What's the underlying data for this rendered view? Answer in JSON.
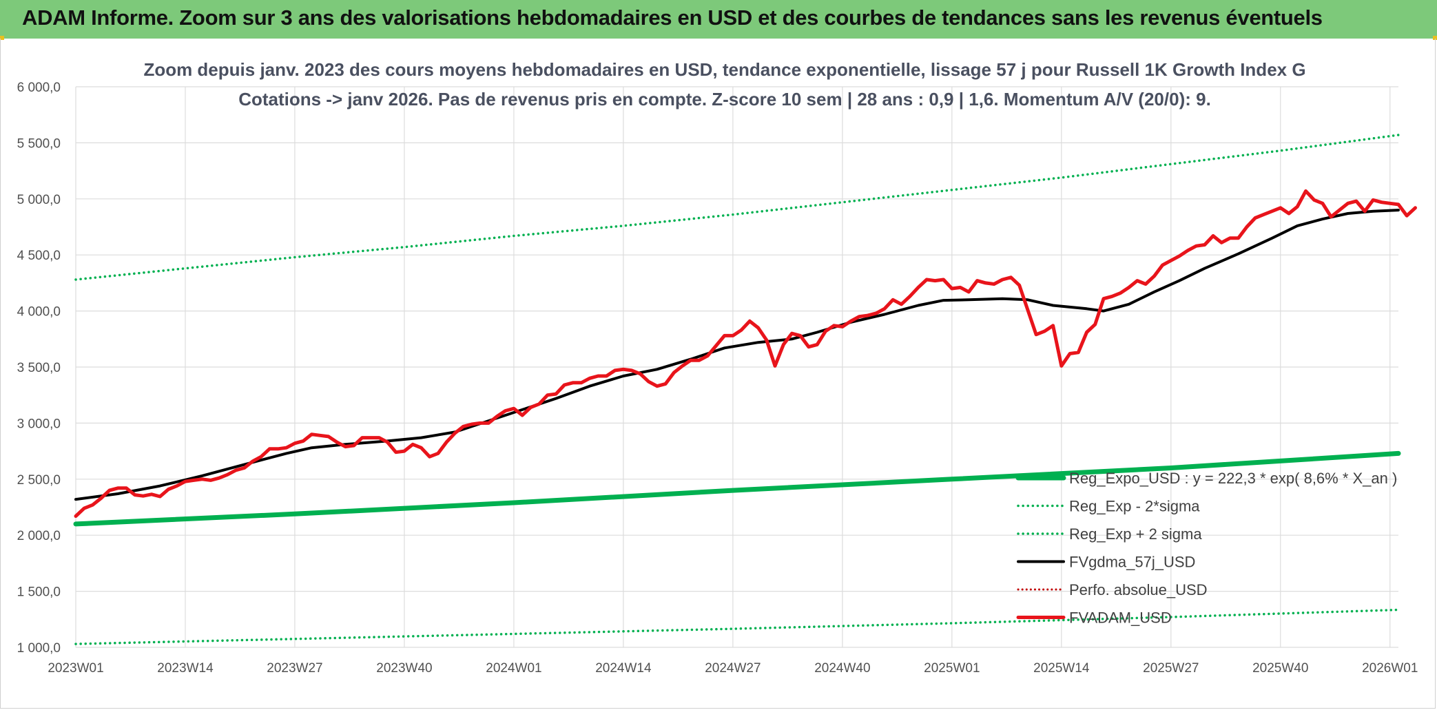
{
  "banner": {
    "title": "ADAM Informe. Zoom sur 3 ans des valorisations hebdomadaires en USD et des courbes de tendances sans les revenus éventuels"
  },
  "colors": {
    "banner": "#7dc97a",
    "trend": "#00b050",
    "smooth": "#000000",
    "price": "#e8141b",
    "perfo": "#c00000"
  },
  "chart_data": {
    "type": "line",
    "title_lines": [
      "Zoom depuis janv. 2023 des cours moyens hebdomadaires en USD, tendance exponentielle, lissage 57 j pour Russell 1K Growth Index G",
      "Cotations -> janv 2026. Pas de revenus pris en compte. Z-score 10 sem | 28 ans : 0,9 | 1,6. Momentum A/V (20/0): 9."
    ],
    "ylim": [
      1000,
      6000
    ],
    "yticks": [
      "1 000,0",
      "1 500,0",
      "2 000,0",
      "2 500,0",
      "3 000,0",
      "3 500,0",
      "4 000,0",
      "4 500,0",
      "5 000,0",
      "5 500,0",
      "6 000,0"
    ],
    "xlim": [
      1,
      158
    ],
    "xticks": [
      {
        "label": "2023W01",
        "x": 1
      },
      {
        "label": "2023W14",
        "x": 14
      },
      {
        "label": "2023W27",
        "x": 27
      },
      {
        "label": "2023W40",
        "x": 40
      },
      {
        "label": "2024W01",
        "x": 53
      },
      {
        "label": "2024W14",
        "x": 66
      },
      {
        "label": "2024W27",
        "x": 79
      },
      {
        "label": "2024W40",
        "x": 92
      },
      {
        "label": "2025W01",
        "x": 105
      },
      {
        "label": "2025W14",
        "x": 118
      },
      {
        "label": "2025W27",
        "x": 131
      },
      {
        "label": "2025W40",
        "x": 144
      },
      {
        "label": "2026W01",
        "x": 157
      }
    ],
    "grid": true,
    "legend_position": "bottom-right",
    "series": [
      {
        "name": "Reg_Expo_USD : y = 222,3 * exp( 8,6% *  X_an )",
        "style": "thick-solid",
        "points": [
          [
            1,
            2100
          ],
          [
            27,
            2190
          ],
          [
            53,
            2290
          ],
          [
            79,
            2400
          ],
          [
            105,
            2500
          ],
          [
            131,
            2600
          ],
          [
            158,
            2730
          ]
        ]
      },
      {
        "name": "Reg_Exp - 2*sigma",
        "style": "dotted-green",
        "points": [
          [
            1,
            1030
          ],
          [
            27,
            1075
          ],
          [
            53,
            1120
          ],
          [
            79,
            1165
          ],
          [
            105,
            1215
          ],
          [
            131,
            1270
          ],
          [
            158,
            1335
          ]
        ]
      },
      {
        "name": "Reg_Exp + 2 sigma",
        "style": "dotted-green",
        "points": [
          [
            1,
            4280
          ],
          [
            14,
            4380
          ],
          [
            27,
            4480
          ],
          [
            40,
            4570
          ],
          [
            53,
            4670
          ],
          [
            66,
            4760
          ],
          [
            79,
            4860
          ],
          [
            92,
            4970
          ],
          [
            105,
            5080
          ],
          [
            118,
            5190
          ],
          [
            131,
            5310
          ],
          [
            144,
            5430
          ],
          [
            158,
            5570
          ]
        ]
      },
      {
        "name": "FVgdma_57j_USD",
        "style": "solid-black",
        "points": [
          [
            1,
            2320
          ],
          [
            6,
            2370
          ],
          [
            11,
            2440
          ],
          [
            16,
            2530
          ],
          [
            21,
            2630
          ],
          [
            26,
            2730
          ],
          [
            29,
            2780
          ],
          [
            33,
            2810
          ],
          [
            38,
            2840
          ],
          [
            42,
            2870
          ],
          [
            46,
            2920
          ],
          [
            50,
            3020
          ],
          [
            54,
            3120
          ],
          [
            58,
            3220
          ],
          [
            62,
            3330
          ],
          [
            66,
            3420
          ],
          [
            70,
            3480
          ],
          [
            74,
            3570
          ],
          [
            78,
            3670
          ],
          [
            82,
            3720
          ],
          [
            86,
            3750
          ],
          [
            89,
            3810
          ],
          [
            93,
            3900
          ],
          [
            97,
            3970
          ],
          [
            101,
            4050
          ],
          [
            104,
            4095
          ],
          [
            107,
            4100
          ],
          [
            111,
            4110
          ],
          [
            114,
            4100
          ],
          [
            117,
            4050
          ],
          [
            121,
            4020
          ],
          [
            123,
            4000
          ],
          [
            126,
            4060
          ],
          [
            129,
            4170
          ],
          [
            132,
            4270
          ],
          [
            135,
            4380
          ],
          [
            139,
            4510
          ],
          [
            143,
            4650
          ],
          [
            146,
            4760
          ],
          [
            149,
            4820
          ],
          [
            152,
            4870
          ],
          [
            155,
            4890
          ],
          [
            158,
            4900
          ]
        ]
      },
      {
        "name": "Perfo. absolue_USD",
        "style": "dotted-red",
        "points": []
      },
      {
        "name": "FVADAM_USD",
        "style": "thick-red",
        "points": [
          [
            1,
            2170
          ],
          [
            2,
            2240
          ],
          [
            3,
            2270
          ],
          [
            4,
            2330
          ],
          [
            5,
            2400
          ],
          [
            6,
            2420
          ],
          [
            7,
            2420
          ],
          [
            8,
            2360
          ],
          [
            9,
            2350
          ],
          [
            10,
            2365
          ],
          [
            11,
            2345
          ],
          [
            12,
            2410
          ],
          [
            13,
            2440
          ],
          [
            14,
            2480
          ],
          [
            15,
            2490
          ],
          [
            16,
            2500
          ],
          [
            17,
            2490
          ],
          [
            18,
            2510
          ],
          [
            19,
            2540
          ],
          [
            20,
            2580
          ],
          [
            21,
            2600
          ],
          [
            22,
            2660
          ],
          [
            23,
            2700
          ],
          [
            24,
            2770
          ],
          [
            25,
            2770
          ],
          [
            26,
            2780
          ],
          [
            27,
            2820
          ],
          [
            28,
            2840
          ],
          [
            29,
            2900
          ],
          [
            30,
            2890
          ],
          [
            31,
            2880
          ],
          [
            32,
            2830
          ],
          [
            33,
            2790
          ],
          [
            34,
            2800
          ],
          [
            35,
            2870
          ],
          [
            36,
            2870
          ],
          [
            37,
            2870
          ],
          [
            38,
            2830
          ],
          [
            39,
            2740
          ],
          [
            40,
            2750
          ],
          [
            41,
            2810
          ],
          [
            42,
            2780
          ],
          [
            43,
            2700
          ],
          [
            44,
            2730
          ],
          [
            45,
            2830
          ],
          [
            46,
            2910
          ],
          [
            47,
            2970
          ],
          [
            48,
            2990
          ],
          [
            49,
            3000
          ],
          [
            50,
            3000
          ],
          [
            51,
            3060
          ],
          [
            52,
            3110
          ],
          [
            53,
            3130
          ],
          [
            54,
            3070
          ],
          [
            55,
            3140
          ],
          [
            56,
            3170
          ],
          [
            57,
            3250
          ],
          [
            58,
            3260
          ],
          [
            59,
            3340
          ],
          [
            60,
            3360
          ],
          [
            61,
            3360
          ],
          [
            62,
            3400
          ],
          [
            63,
            3420
          ],
          [
            64,
            3420
          ],
          [
            65,
            3470
          ],
          [
            66,
            3480
          ],
          [
            67,
            3470
          ],
          [
            68,
            3440
          ],
          [
            69,
            3370
          ],
          [
            70,
            3330
          ],
          [
            71,
            3350
          ],
          [
            72,
            3450
          ],
          [
            73,
            3510
          ],
          [
            74,
            3560
          ],
          [
            75,
            3560
          ],
          [
            76,
            3600
          ],
          [
            77,
            3690
          ],
          [
            78,
            3780
          ],
          [
            79,
            3780
          ],
          [
            80,
            3830
          ],
          [
            81,
            3910
          ],
          [
            82,
            3850
          ],
          [
            83,
            3740
          ],
          [
            84,
            3510
          ],
          [
            85,
            3700
          ],
          [
            86,
            3800
          ],
          [
            87,
            3780
          ],
          [
            88,
            3680
          ],
          [
            89,
            3700
          ],
          [
            90,
            3820
          ],
          [
            91,
            3870
          ],
          [
            92,
            3860
          ],
          [
            93,
            3910
          ],
          [
            94,
            3950
          ],
          [
            95,
            3960
          ],
          [
            96,
            3980
          ],
          [
            97,
            4020
          ],
          [
            98,
            4100
          ],
          [
            99,
            4060
          ],
          [
            100,
            4130
          ],
          [
            101,
            4210
          ],
          [
            102,
            4280
          ],
          [
            103,
            4270
          ],
          [
            104,
            4280
          ],
          [
            105,
            4200
          ],
          [
            106,
            4210
          ],
          [
            107,
            4170
          ],
          [
            108,
            4270
          ],
          [
            109,
            4250
          ],
          [
            110,
            4240
          ],
          [
            111,
            4280
          ],
          [
            112,
            4300
          ],
          [
            113,
            4230
          ],
          [
            114,
            4010
          ],
          [
            115,
            3790
          ],
          [
            116,
            3820
          ],
          [
            117,
            3870
          ],
          [
            118,
            3510
          ],
          [
            119,
            3620
          ],
          [
            120,
            3630
          ],
          [
            121,
            3810
          ],
          [
            122,
            3880
          ],
          [
            123,
            4110
          ],
          [
            124,
            4130
          ],
          [
            125,
            4160
          ],
          [
            126,
            4210
          ],
          [
            127,
            4270
          ],
          [
            128,
            4240
          ],
          [
            129,
            4310
          ],
          [
            130,
            4410
          ],
          [
            131,
            4450
          ],
          [
            132,
            4490
          ],
          [
            133,
            4540
          ],
          [
            134,
            4580
          ],
          [
            135,
            4590
          ],
          [
            136,
            4670
          ],
          [
            137,
            4610
          ],
          [
            138,
            4650
          ],
          [
            139,
            4650
          ],
          [
            140,
            4750
          ],
          [
            141,
            4830
          ],
          [
            142,
            4860
          ],
          [
            143,
            4890
          ],
          [
            144,
            4920
          ],
          [
            145,
            4870
          ],
          [
            146,
            4930
          ],
          [
            147,
            5070
          ],
          [
            148,
            4990
          ],
          [
            149,
            4960
          ],
          [
            150,
            4840
          ],
          [
            151,
            4900
          ],
          [
            152,
            4960
          ],
          [
            153,
            4980
          ],
          [
            154,
            4890
          ],
          [
            155,
            4990
          ],
          [
            156,
            4970
          ],
          [
            157,
            4960
          ],
          [
            158,
            4950
          ],
          [
            159,
            4850
          ],
          [
            160,
            4920
          ]
        ]
      }
    ]
  }
}
